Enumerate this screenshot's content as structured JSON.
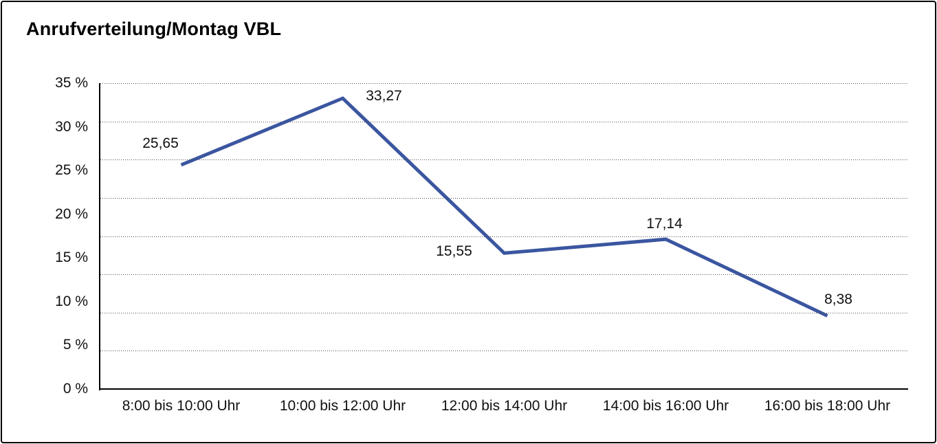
{
  "frame": {
    "border_color": "#000000",
    "background_color": "#ffffff"
  },
  "chart_data": {
    "type": "line",
    "title": "Anrufverteilung/Montag VBL",
    "categories": [
      "8:00 bis 10:00 Uhr",
      "10:00 bis 12:00 Uhr",
      "12:00 bis 14:00 Uhr",
      "14:00 bis 16:00 Uhr",
      "16:00 bis 18:00 Uhr"
    ],
    "values": [
      25.65,
      33.27,
      15.55,
      17.14,
      8.38
    ],
    "point_labels": [
      "25,65",
      "33,27",
      "15,55",
      "17,14",
      "8,38"
    ],
    "label_placements": [
      "above-left",
      "right",
      "left",
      "above",
      "above-right"
    ],
    "y_tick_labels": [
      "35 %",
      "30 %",
      "25 %",
      "20 %",
      "15 %",
      "10 %",
      "5 %",
      "0 %"
    ],
    "ylim": [
      0,
      35
    ],
    "xlabel": "",
    "ylabel": "",
    "legend": "none",
    "grid": "horizontal-dotted",
    "gridline_count": 9,
    "markers": "none",
    "decimal_separator": ",",
    "line_color": "#3B56A0",
    "axis_color": "#000000",
    "gridline_color": "#4a4a4a",
    "text_color": "#111111"
  }
}
